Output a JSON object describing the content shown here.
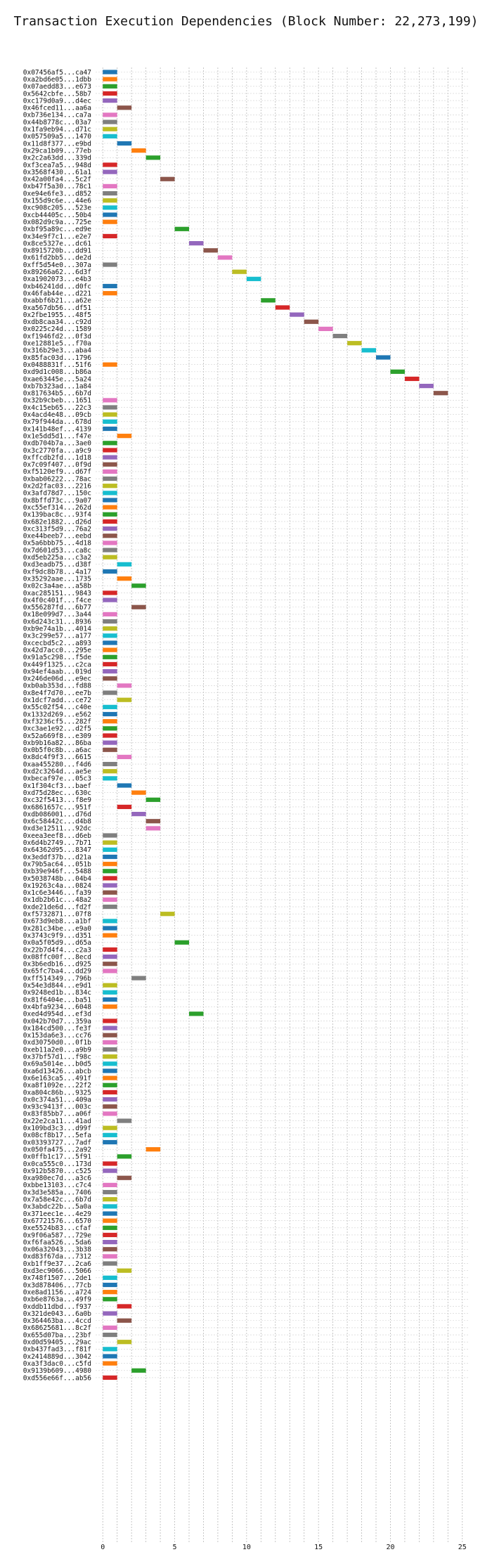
{
  "chart_data": {
    "type": "bar",
    "title": "Transaction Execution Dependencies (Block Number: 22,273,199)",
    "xlabel": "",
    "ylabel": "",
    "xlim": [
      -0.5,
      25.5
    ],
    "x_ticks": [
      0,
      5,
      10,
      15,
      20,
      25
    ],
    "grid": true,
    "palette": [
      "#1f77b4",
      "#ff7f0e",
      "#2ca02c",
      "#d62728",
      "#9467bd",
      "#8c564b",
      "#e377c2",
      "#7f7f7f",
      "#bcbd22",
      "#17becf"
    ],
    "transactions": [
      {
        "hash": "0x07456af5...ca47",
        "start": 0,
        "end": 1
      },
      {
        "hash": "0xa2bd6e05...1dbb",
        "start": 0,
        "end": 1
      },
      {
        "hash": "0x07aedd83...e673",
        "start": 0,
        "end": 1
      },
      {
        "hash": "0x5642cbfe...58b7",
        "start": 0,
        "end": 1
      },
      {
        "hash": "0xc179d0a9...d4ec",
        "start": 0,
        "end": 1
      },
      {
        "hash": "0x46fced11...aa6a",
        "start": 1,
        "end": 2
      },
      {
        "hash": "0xb736e134...ca7a",
        "start": 0,
        "end": 1
      },
      {
        "hash": "0x44b8778c...03a7",
        "start": 0,
        "end": 1
      },
      {
        "hash": "0x1fa9eb94...d71c",
        "start": 0,
        "end": 1
      },
      {
        "hash": "0x057509a5...1470",
        "start": 0,
        "end": 1
      },
      {
        "hash": "0x11d8f377...e9bd",
        "start": 1,
        "end": 2
      },
      {
        "hash": "0x29ca1b09...77eb",
        "start": 2,
        "end": 3
      },
      {
        "hash": "0x2c2a63dd...339d",
        "start": 3,
        "end": 4
      },
      {
        "hash": "0xf3cea7a5...948d",
        "start": 0,
        "end": 1
      },
      {
        "hash": "0x3568f430...61a1",
        "start": 0,
        "end": 1
      },
      {
        "hash": "0x42a00fa4...5c2f",
        "start": 4,
        "end": 5
      },
      {
        "hash": "0xb47f5a30...78c1",
        "start": 0,
        "end": 1
      },
      {
        "hash": "0xe94e6fe3...d852",
        "start": 0,
        "end": 1
      },
      {
        "hash": "0x155d9c6e...44e6",
        "start": 0,
        "end": 1
      },
      {
        "hash": "0xc908c205...523e",
        "start": 0,
        "end": 1
      },
      {
        "hash": "0xcb44405c...50b4",
        "start": 0,
        "end": 1
      },
      {
        "hash": "0x082d9c9a...725e",
        "start": 0,
        "end": 1
      },
      {
        "hash": "0xbf95a89c...ed9e",
        "start": 5,
        "end": 6
      },
      {
        "hash": "0x34e9f7c1...e2e7",
        "start": 0,
        "end": 1
      },
      {
        "hash": "0x8ce5327e...dc61",
        "start": 6,
        "end": 7
      },
      {
        "hash": "0x8915720b...dd91",
        "start": 7,
        "end": 8
      },
      {
        "hash": "0x61fd2bb5...de2d",
        "start": 8,
        "end": 9
      },
      {
        "hash": "0xff5d54e0...307a",
        "start": 0,
        "end": 1
      },
      {
        "hash": "0x89266a62...6d3f",
        "start": 9,
        "end": 10
      },
      {
        "hash": "0xa1902073...e4b3",
        "start": 10,
        "end": 11
      },
      {
        "hash": "0xb46241dd...d0fc",
        "start": 0,
        "end": 1
      },
      {
        "hash": "0x46fab44e...d221",
        "start": 0,
        "end": 1
      },
      {
        "hash": "0xabbf6b21...a62e",
        "start": 11,
        "end": 12
      },
      {
        "hash": "0xa567db56...df51",
        "start": 12,
        "end": 13
      },
      {
        "hash": "0x2fbe1955...48f5",
        "start": 13,
        "end": 14
      },
      {
        "hash": "0xdb8caa34...c92d",
        "start": 14,
        "end": 15
      },
      {
        "hash": "0x0225c24d...1589",
        "start": 15,
        "end": 16
      },
      {
        "hash": "0xf1946fd2...0f3d",
        "start": 16,
        "end": 17
      },
      {
        "hash": "0xe12881e5...f70a",
        "start": 17,
        "end": 18
      },
      {
        "hash": "0x316b29e3...aba4",
        "start": 18,
        "end": 19
      },
      {
        "hash": "0x85fac03d...1796",
        "start": 19,
        "end": 20
      },
      {
        "hash": "0x0488831f...51f6",
        "start": 0,
        "end": 1
      },
      {
        "hash": "0xd9d1c008...b86a",
        "start": 20,
        "end": 21
      },
      {
        "hash": "0xae63445e...5a24",
        "start": 21,
        "end": 22
      },
      {
        "hash": "0xb7b323ad...1a84",
        "start": 22,
        "end": 23
      },
      {
        "hash": "0x817634b5...6b7d",
        "start": 23,
        "end": 24
      },
      {
        "hash": "0x32b9cbeb...1651",
        "start": 0,
        "end": 1
      },
      {
        "hash": "0x4c15eb65...22c3",
        "start": 0,
        "end": 1
      },
      {
        "hash": "0x4acd4e48...09cb",
        "start": 0,
        "end": 1
      },
      {
        "hash": "0x79f944da...678d",
        "start": 0,
        "end": 1
      },
      {
        "hash": "0x141b48ef...4139",
        "start": 0,
        "end": 1
      },
      {
        "hash": "0x1e5dd5d1...f47e",
        "start": 1,
        "end": 2
      },
      {
        "hash": "0xdb704b7a...3ae0",
        "start": 0,
        "end": 1
      },
      {
        "hash": "0x3c2770fa...a9c9",
        "start": 0,
        "end": 1
      },
      {
        "hash": "0xffcdb2fd...1d18",
        "start": 0,
        "end": 1
      },
      {
        "hash": "0x7c09f407...0f9d",
        "start": 0,
        "end": 1
      },
      {
        "hash": "0xf5120ef9...d67f",
        "start": 0,
        "end": 1
      },
      {
        "hash": "0xbab06222...78ac",
        "start": 0,
        "end": 1
      },
      {
        "hash": "0x2d2fac03...2216",
        "start": 0,
        "end": 1
      },
      {
        "hash": "0x3afd78d7...150c",
        "start": 0,
        "end": 1
      },
      {
        "hash": "0x8bffd73c...9a07",
        "start": 0,
        "end": 1
      },
      {
        "hash": "0xc55ef314...262d",
        "start": 0,
        "end": 1
      },
      {
        "hash": "0x139bac8c...93f4",
        "start": 0,
        "end": 1
      },
      {
        "hash": "0x682e1882...d26d",
        "start": 0,
        "end": 1
      },
      {
        "hash": "0xc313f5d9...76a2",
        "start": 0,
        "end": 1
      },
      {
        "hash": "0xe44beeb7...eebd",
        "start": 0,
        "end": 1
      },
      {
        "hash": "0x5a6bbb75...4d18",
        "start": 0,
        "end": 1
      },
      {
        "hash": "0x7d601d53...ca8c",
        "start": 0,
        "end": 1
      },
      {
        "hash": "0xd5eb225a...c3a2",
        "start": 0,
        "end": 1
      },
      {
        "hash": "0xd3eadb75...d38f",
        "start": 1,
        "end": 2
      },
      {
        "hash": "0xf9dc8b78...4a17",
        "start": 0,
        "end": 1
      },
      {
        "hash": "0x35292aae...1735",
        "start": 1,
        "end": 2
      },
      {
        "hash": "0x02c3a4ae...a58b",
        "start": 2,
        "end": 3
      },
      {
        "hash": "0xac285151...9843",
        "start": 0,
        "end": 1
      },
      {
        "hash": "0x4f0c401f...f4ce",
        "start": 0,
        "end": 1
      },
      {
        "hash": "0x556287fd...6b77",
        "start": 2,
        "end": 3
      },
      {
        "hash": "0x18e099d7...3a44",
        "start": 0,
        "end": 1
      },
      {
        "hash": "0x6d243c31...8936",
        "start": 0,
        "end": 1
      },
      {
        "hash": "0xb9e74a1b...4014",
        "start": 0,
        "end": 1
      },
      {
        "hash": "0x3c299e57...a177",
        "start": 0,
        "end": 1
      },
      {
        "hash": "0xcecbd5c2...a893",
        "start": 0,
        "end": 1
      },
      {
        "hash": "0x42d7acc0...295e",
        "start": 0,
        "end": 1
      },
      {
        "hash": "0x91a5c298...f5de",
        "start": 0,
        "end": 1
      },
      {
        "hash": "0x449f1325...c2ca",
        "start": 0,
        "end": 1
      },
      {
        "hash": "0x94ef4aab...019d",
        "start": 0,
        "end": 1
      },
      {
        "hash": "0x246de06d...e9ec",
        "start": 0,
        "end": 1
      },
      {
        "hash": "0xb0ab353d...fd88",
        "start": 1,
        "end": 2
      },
      {
        "hash": "0x8e4f7d70...ee7b",
        "start": 0,
        "end": 1
      },
      {
        "hash": "0x1dcf7add...ce72",
        "start": 1,
        "end": 2
      },
      {
        "hash": "0x55c02f54...c40e",
        "start": 0,
        "end": 1
      },
      {
        "hash": "0x1332d269...e562",
        "start": 0,
        "end": 1
      },
      {
        "hash": "0xf3236cf5...282f",
        "start": 0,
        "end": 1
      },
      {
        "hash": "0xc3ae1e92...d2f5",
        "start": 0,
        "end": 1
      },
      {
        "hash": "0x52a669f8...e309",
        "start": 0,
        "end": 1
      },
      {
        "hash": "0xb9b16a82...86ba",
        "start": 0,
        "end": 1
      },
      {
        "hash": "0x0b5f0c8b...a6ac",
        "start": 0,
        "end": 1
      },
      {
        "hash": "0x8dc4f9f3...6615",
        "start": 1,
        "end": 2
      },
      {
        "hash": "0xaa455280...f4d6",
        "start": 0,
        "end": 1
      },
      {
        "hash": "0xd2c3264d...ae5e",
        "start": 0,
        "end": 1
      },
      {
        "hash": "0xbecaf97e...05c3",
        "start": 0,
        "end": 1
      },
      {
        "hash": "0x1f304cf3...baef",
        "start": 1,
        "end": 2
      },
      {
        "hash": "0xd75d28ec...630c",
        "start": 2,
        "end": 3
      },
      {
        "hash": "0xc32f5413...f8e9",
        "start": 3,
        "end": 4
      },
      {
        "hash": "0x6861657c...951f",
        "start": 1,
        "end": 2
      },
      {
        "hash": "0xdb086001...d76d",
        "start": 2,
        "end": 3
      },
      {
        "hash": "0x6c58442c...d4b8",
        "start": 3,
        "end": 4
      },
      {
        "hash": "0xd3e12511...92dc",
        "start": 3,
        "end": 4
      },
      {
        "hash": "0xeea3eef8...d6eb",
        "start": 0,
        "end": 1
      },
      {
        "hash": "0x6d4b2749...7b71",
        "start": 0,
        "end": 1
      },
      {
        "hash": "0x64362d95...8347",
        "start": 0,
        "end": 1
      },
      {
        "hash": "0x3eddf37b...d21a",
        "start": 0,
        "end": 1
      },
      {
        "hash": "0x79b5ac64...051b",
        "start": 0,
        "end": 1
      },
      {
        "hash": "0xb39e946f...5488",
        "start": 0,
        "end": 1
      },
      {
        "hash": "0x5038748b...04b4",
        "start": 0,
        "end": 1
      },
      {
        "hash": "0x19263c4a...0824",
        "start": 0,
        "end": 1
      },
      {
        "hash": "0x1c6e3446...fa39",
        "start": 0,
        "end": 1
      },
      {
        "hash": "0x1db2b61c...48a2",
        "start": 0,
        "end": 1
      },
      {
        "hash": "0xde21de6d...fd2f",
        "start": 0,
        "end": 1
      },
      {
        "hash": "0xf5732871...07f8",
        "start": 4,
        "end": 5
      },
      {
        "hash": "0x673d9eb8...a1bf",
        "start": 0,
        "end": 1
      },
      {
        "hash": "0x281c34be...e9a0",
        "start": 0,
        "end": 1
      },
      {
        "hash": "0x3743c9f9...d351",
        "start": 0,
        "end": 1
      },
      {
        "hash": "0x0a5f05d9...d65a",
        "start": 5,
        "end": 6
      },
      {
        "hash": "0x22b7d4f4...c2a3",
        "start": 0,
        "end": 1
      },
      {
        "hash": "0x08ffc00f...8ecd",
        "start": 0,
        "end": 1
      },
      {
        "hash": "0x3b6edb16...d925",
        "start": 0,
        "end": 1
      },
      {
        "hash": "0x65fc7ba4...dd29",
        "start": 0,
        "end": 1
      },
      {
        "hash": "0xff514349...796b",
        "start": 2,
        "end": 3
      },
      {
        "hash": "0x54e3d844...e9d1",
        "start": 0,
        "end": 1
      },
      {
        "hash": "0x9248ed1b...834c",
        "start": 0,
        "end": 1
      },
      {
        "hash": "0x81f6404e...ba51",
        "start": 0,
        "end": 1
      },
      {
        "hash": "0x4bfa9234...6048",
        "start": 0,
        "end": 1
      },
      {
        "hash": "0xed4d954d...ef3d",
        "start": 6,
        "end": 7
      },
      {
        "hash": "0x042b70d7...359a",
        "start": 0,
        "end": 1
      },
      {
        "hash": "0x184cd500...fe3f",
        "start": 0,
        "end": 1
      },
      {
        "hash": "0x153da6e3...cc76",
        "start": 0,
        "end": 1
      },
      {
        "hash": "0xd30750d0...0f1b",
        "start": 0,
        "end": 1
      },
      {
        "hash": "0xeb11a2e0...a9b9",
        "start": 0,
        "end": 1
      },
      {
        "hash": "0x37bf57d1...f98c",
        "start": 0,
        "end": 1
      },
      {
        "hash": "0x69a5014e...b0d5",
        "start": 0,
        "end": 1
      },
      {
        "hash": "0xa6d13426...abcb",
        "start": 0,
        "end": 1
      },
      {
        "hash": "0x6e163ca5...491f",
        "start": 0,
        "end": 1
      },
      {
        "hash": "0xa8f1092e...22f2",
        "start": 0,
        "end": 1
      },
      {
        "hash": "0xa804c86b...9325",
        "start": 0,
        "end": 1
      },
      {
        "hash": "0x0c374a51...409a",
        "start": 0,
        "end": 1
      },
      {
        "hash": "0x93c9413f...003c",
        "start": 0,
        "end": 1
      },
      {
        "hash": "0x83f85bb7...a06f",
        "start": 0,
        "end": 1
      },
      {
        "hash": "0x22e2ca11...41ad",
        "start": 1,
        "end": 2
      },
      {
        "hash": "0x109bd3c3...d99f",
        "start": 0,
        "end": 1
      },
      {
        "hash": "0x08cf8b17...5efa",
        "start": 0,
        "end": 1
      },
      {
        "hash": "0x03393727...7adf",
        "start": 0,
        "end": 1
      },
      {
        "hash": "0x050fa475...2a92",
        "start": 3,
        "end": 4
      },
      {
        "hash": "0x0ffb1c17...5f91",
        "start": 1,
        "end": 2
      },
      {
        "hash": "0x0ca555c0...173d",
        "start": 0,
        "end": 1
      },
      {
        "hash": "0x912b5870...c525",
        "start": 0,
        "end": 1
      },
      {
        "hash": "0xa980ec7d...a3c6",
        "start": 1,
        "end": 2
      },
      {
        "hash": "0xbbe13103...c7c4",
        "start": 0,
        "end": 1
      },
      {
        "hash": "0x3d3e585a...7406",
        "start": 0,
        "end": 1
      },
      {
        "hash": "0x7a58e42c...6b7d",
        "start": 0,
        "end": 1
      },
      {
        "hash": "0x3abdc22b...5a0a",
        "start": 0,
        "end": 1
      },
      {
        "hash": "0x371eec1e...4e29",
        "start": 0,
        "end": 1
      },
      {
        "hash": "0x67721576...6570",
        "start": 0,
        "end": 1
      },
      {
        "hash": "0xe5524b83...cfaf",
        "start": 0,
        "end": 1
      },
      {
        "hash": "0x9f06a587...729e",
        "start": 0,
        "end": 1
      },
      {
        "hash": "0xf6faa526...5da6",
        "start": 0,
        "end": 1
      },
      {
        "hash": "0x06a32043...3b38",
        "start": 0,
        "end": 1
      },
      {
        "hash": "0xd83f67da...7312",
        "start": 0,
        "end": 1
      },
      {
        "hash": "0xb1ff9e37...2ca6",
        "start": 0,
        "end": 1
      },
      {
        "hash": "0xd3ec9066...5066",
        "start": 1,
        "end": 2
      },
      {
        "hash": "0x748f1507...2de1",
        "start": 0,
        "end": 1
      },
      {
        "hash": "0x3d878406...77cb",
        "start": 0,
        "end": 1
      },
      {
        "hash": "0xe8ad1156...a724",
        "start": 0,
        "end": 1
      },
      {
        "hash": "0xb6e8763a...49f9",
        "start": 0,
        "end": 1
      },
      {
        "hash": "0xddb11dbd...f937",
        "start": 1,
        "end": 2
      },
      {
        "hash": "0x321de043...6a0b",
        "start": 0,
        "end": 1
      },
      {
        "hash": "0x364463ba...4ccd",
        "start": 1,
        "end": 2
      },
      {
        "hash": "0x68625681...8c2f",
        "start": 0,
        "end": 1
      },
      {
        "hash": "0x655d07ba...23bf",
        "start": 0,
        "end": 1
      },
      {
        "hash": "0xd0d59405...29ac",
        "start": 1,
        "end": 2
      },
      {
        "hash": "0xb437fad3...f81f",
        "start": 0,
        "end": 1
      },
      {
        "hash": "0x2414889d...3042",
        "start": 0,
        "end": 1
      },
      {
        "hash": "0xa3f3dac0...c5fd",
        "start": 0,
        "end": 1
      },
      {
        "hash": "0x9139b609...4980",
        "start": 2,
        "end": 3
      },
      {
        "hash": "0xd556e66f...ab56",
        "start": 0,
        "end": 1
      }
    ]
  }
}
